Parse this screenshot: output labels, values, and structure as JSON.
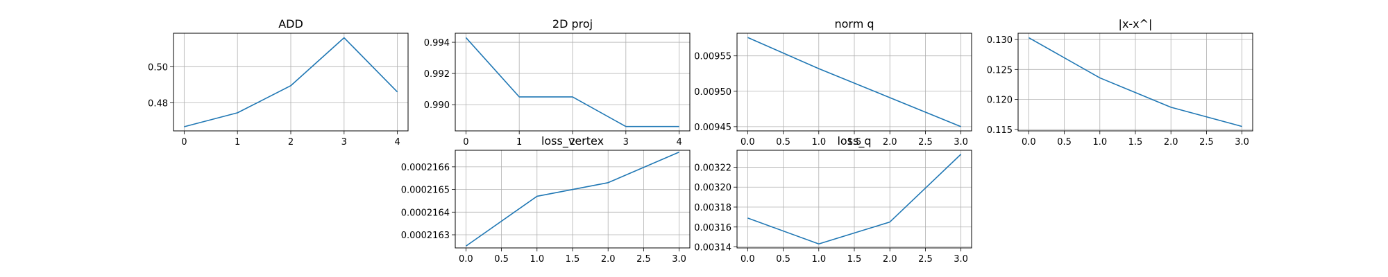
{
  "chart_data": [
    {
      "type": "line",
      "title": "ADD",
      "x": [
        0,
        1,
        2,
        3,
        4
      ],
      "series": [
        {
          "values": [
            0.4668,
            0.4745,
            0.4895,
            0.516,
            0.486
          ],
          "color": "#1f77b4"
        }
      ],
      "xlim": [
        -0.2,
        4.2
      ],
      "ylim": [
        0.4645,
        0.5185
      ],
      "xticks": [
        0,
        1,
        2,
        3,
        4
      ],
      "xticklabels": [
        "0",
        "1",
        "2",
        "3",
        "4"
      ],
      "yticks": [
        0.48,
        0.5
      ],
      "yticklabels": [
        "0.48",
        "0.50"
      ],
      "grid": true
    },
    {
      "type": "line",
      "title": "2D proj",
      "x": [
        0,
        1,
        2,
        3,
        4
      ],
      "series": [
        {
          "values": [
            0.9943,
            0.9905,
            0.9905,
            0.9886,
            0.9886
          ],
          "color": "#1f77b4"
        }
      ],
      "xlim": [
        -0.2,
        4.2
      ],
      "ylim": [
        0.98832,
        0.99458
      ],
      "xticks": [
        0,
        1,
        2,
        3,
        4
      ],
      "xticklabels": [
        "0",
        "1",
        "2",
        "3",
        "4"
      ],
      "yticks": [
        0.99,
        0.992,
        0.994
      ],
      "yticklabels": [
        "0.990",
        "0.992",
        "0.994"
      ],
      "grid": true
    },
    {
      "type": "line",
      "title": "norm q",
      "x": [
        0,
        1,
        2,
        3
      ],
      "series": [
        {
          "values": [
            0.009576,
            0.009532,
            0.009491,
            0.00945
          ],
          "color": "#1f77b4"
        }
      ],
      "xlim": [
        -0.15,
        3.15
      ],
      "ylim": [
        0.009444,
        0.009582
      ],
      "xticks": [
        0,
        0.5,
        1,
        1.5,
        2,
        2.5,
        3
      ],
      "xticklabels": [
        "0.0",
        "0.5",
        "1.0",
        "1.5",
        "2.0",
        "2.5",
        "3.0"
      ],
      "yticks": [
        0.00945,
        0.0095,
        0.00955
      ],
      "yticklabels": [
        "0.00945",
        "0.00950",
        "0.00955"
      ],
      "grid": true
    },
    {
      "type": "line",
      "title": "|x-x^|",
      "x": [
        0,
        1,
        2,
        3
      ],
      "series": [
        {
          "values": [
            0.1303,
            0.1236,
            0.1187,
            0.1155
          ],
          "color": "#1f77b4"
        }
      ],
      "xlim": [
        -0.15,
        3.15
      ],
      "ylim": [
        0.11476,
        0.13104
      ],
      "xticks": [
        0,
        0.5,
        1,
        1.5,
        2,
        2.5,
        3
      ],
      "xticklabels": [
        "0.0",
        "0.5",
        "1.0",
        "1.5",
        "2.0",
        "2.5",
        "3.0"
      ],
      "yticks": [
        0.115,
        0.12,
        0.125,
        0.13
      ],
      "yticklabels": [
        "0.115",
        "0.120",
        "0.125",
        "0.130"
      ],
      "grid": true
    },
    {
      "type": "line",
      "title": "loss_vertex",
      "x": [
        0,
        1,
        2,
        3
      ],
      "series": [
        {
          "values": [
            0.00021625,
            0.00021647,
            0.00021653,
            0.000216665
          ],
          "color": "#1f77b4"
        }
      ],
      "xlim": [
        -0.15,
        3.15
      ],
      "ylim": [
        0.000216242,
        0.000216673
      ],
      "xticks": [
        0,
        0.5,
        1,
        1.5,
        2,
        2.5,
        3
      ],
      "xticklabels": [
        "0.0",
        "0.5",
        "1.0",
        "1.5",
        "2.0",
        "2.5",
        "3.0"
      ],
      "yticks": [
        0.0002163,
        0.0002164,
        0.0002165,
        0.0002166
      ],
      "yticklabels": [
        "0.0002163",
        "0.0002164",
        "0.0002165",
        "0.0002166"
      ],
      "grid": true
    },
    {
      "type": "line",
      "title": "loss_q",
      "x": [
        0,
        1,
        2,
        3
      ],
      "series": [
        {
          "values": [
            0.003169,
            0.003143,
            0.003165,
            0.003233
          ],
          "color": "#1f77b4"
        }
      ],
      "xlim": [
        -0.15,
        3.15
      ],
      "ylim": [
        0.003139,
        0.003237
      ],
      "xticks": [
        0,
        0.5,
        1,
        1.5,
        2,
        2.5,
        3
      ],
      "xticklabels": [
        "0.0",
        "0.5",
        "1.0",
        "1.5",
        "2.0",
        "2.5",
        "3.0"
      ],
      "yticks": [
        0.00314,
        0.00316,
        0.00318,
        0.0032,
        0.00322
      ],
      "yticklabels": [
        "0.00314",
        "0.00316",
        "0.00318",
        "0.00320",
        "0.00322"
      ],
      "grid": true
    }
  ]
}
